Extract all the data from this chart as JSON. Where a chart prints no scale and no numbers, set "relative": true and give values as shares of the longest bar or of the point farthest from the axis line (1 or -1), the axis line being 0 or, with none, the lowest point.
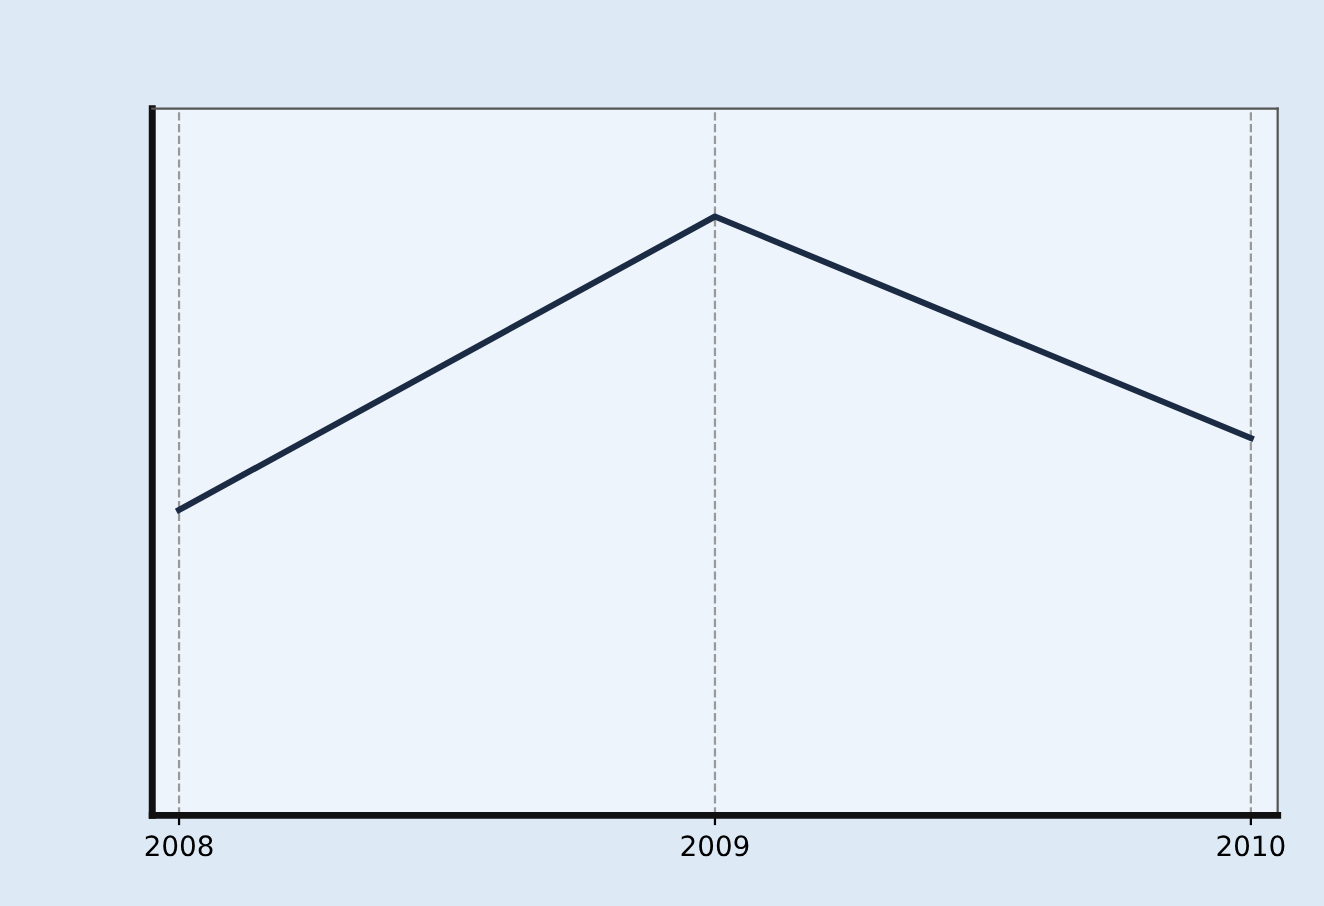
{
  "chart_data": {
    "type": "line",
    "relative": true,
    "categories": [
      "2008",
      "2009",
      "2010"
    ],
    "series": [
      {
        "color": "#1c2b44",
        "values": [
          0.51,
          1,
          0.63
        ]
      }
    ],
    "grid": "x",
    "marker": "none",
    "line_style": "solid"
  }
}
